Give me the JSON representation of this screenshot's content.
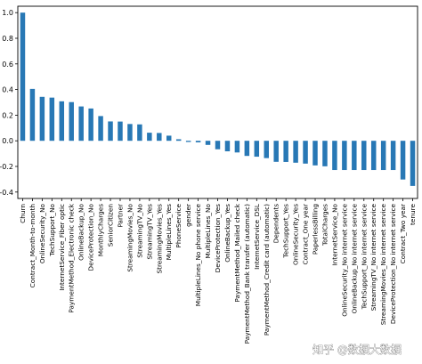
{
  "chart_data": {
    "type": "bar",
    "categories": [
      "Churn",
      "Contract_Month-to-month",
      "OnlineSecurity_No",
      "TechSupport_No",
      "InternetService_Fiber optic",
      "PaymentMethod_Electronic check",
      "OnlineBackup_No",
      "DeviceProtection_No",
      "MonthlyCharges",
      "SeniorCitizen",
      "Partner",
      "StreamingMovies_No",
      "StreamingTV_No",
      "StreamingTV_Yes",
      "StreamingMovies_Yes",
      "MultipleLines_Yes",
      "PhoneService",
      "gender",
      "MultipleLines_No phone service",
      "MultipleLines_No",
      "DeviceProtection_Yes",
      "OnlineBackup_Yes",
      "PaymentMethod_Mailed check",
      "PaymentMethod_Bank transfer (automatic)",
      "InternetService_DSL",
      "PaymentMethod_Credit card (automatic)",
      "Dependents",
      "TechSupport_Yes",
      "OnlineSecurity_Yes",
      "Contract_One year",
      "PaperlessBilling",
      "TotalCharges",
      "InternetService_No",
      "OnlineSecurity_No internet service",
      "OnlineBackup_No internet service",
      "TechSupport_No internet service",
      "StreamingTV_No internet service",
      "StreamingMovies_No internet service",
      "DeviceProtection_No internet service",
      "Contract_Two year",
      "tenure"
    ],
    "values": [
      1.0,
      0.405,
      0.343,
      0.337,
      0.308,
      0.302,
      0.268,
      0.252,
      0.193,
      0.151,
      0.15,
      0.131,
      0.128,
      0.063,
      0.061,
      0.04,
      0.012,
      -0.009,
      -0.012,
      -0.032,
      -0.066,
      -0.082,
      -0.091,
      -0.118,
      -0.124,
      -0.135,
      -0.164,
      -0.165,
      -0.171,
      -0.178,
      -0.192,
      -0.199,
      -0.228,
      -0.228,
      -0.228,
      -0.228,
      -0.228,
      -0.228,
      -0.228,
      -0.302,
      -0.352
    ],
    "ylim": [
      -0.45,
      1.05
    ],
    "yticks": [
      -0.4,
      -0.2,
      0.0,
      0.2,
      0.4,
      0.6,
      0.8,
      1.0
    ],
    "ytick_labels": [
      "-0.4",
      "-0.2",
      "0.0",
      "0.2",
      "0.4",
      "0.6",
      "0.8",
      "1.0"
    ],
    "title": "",
    "xlabel": "",
    "ylabel": "",
    "grid": false,
    "legend": "none",
    "bar_color": "#2878b5"
  },
  "watermark": {
    "text": "知乎 @数据大数据"
  }
}
